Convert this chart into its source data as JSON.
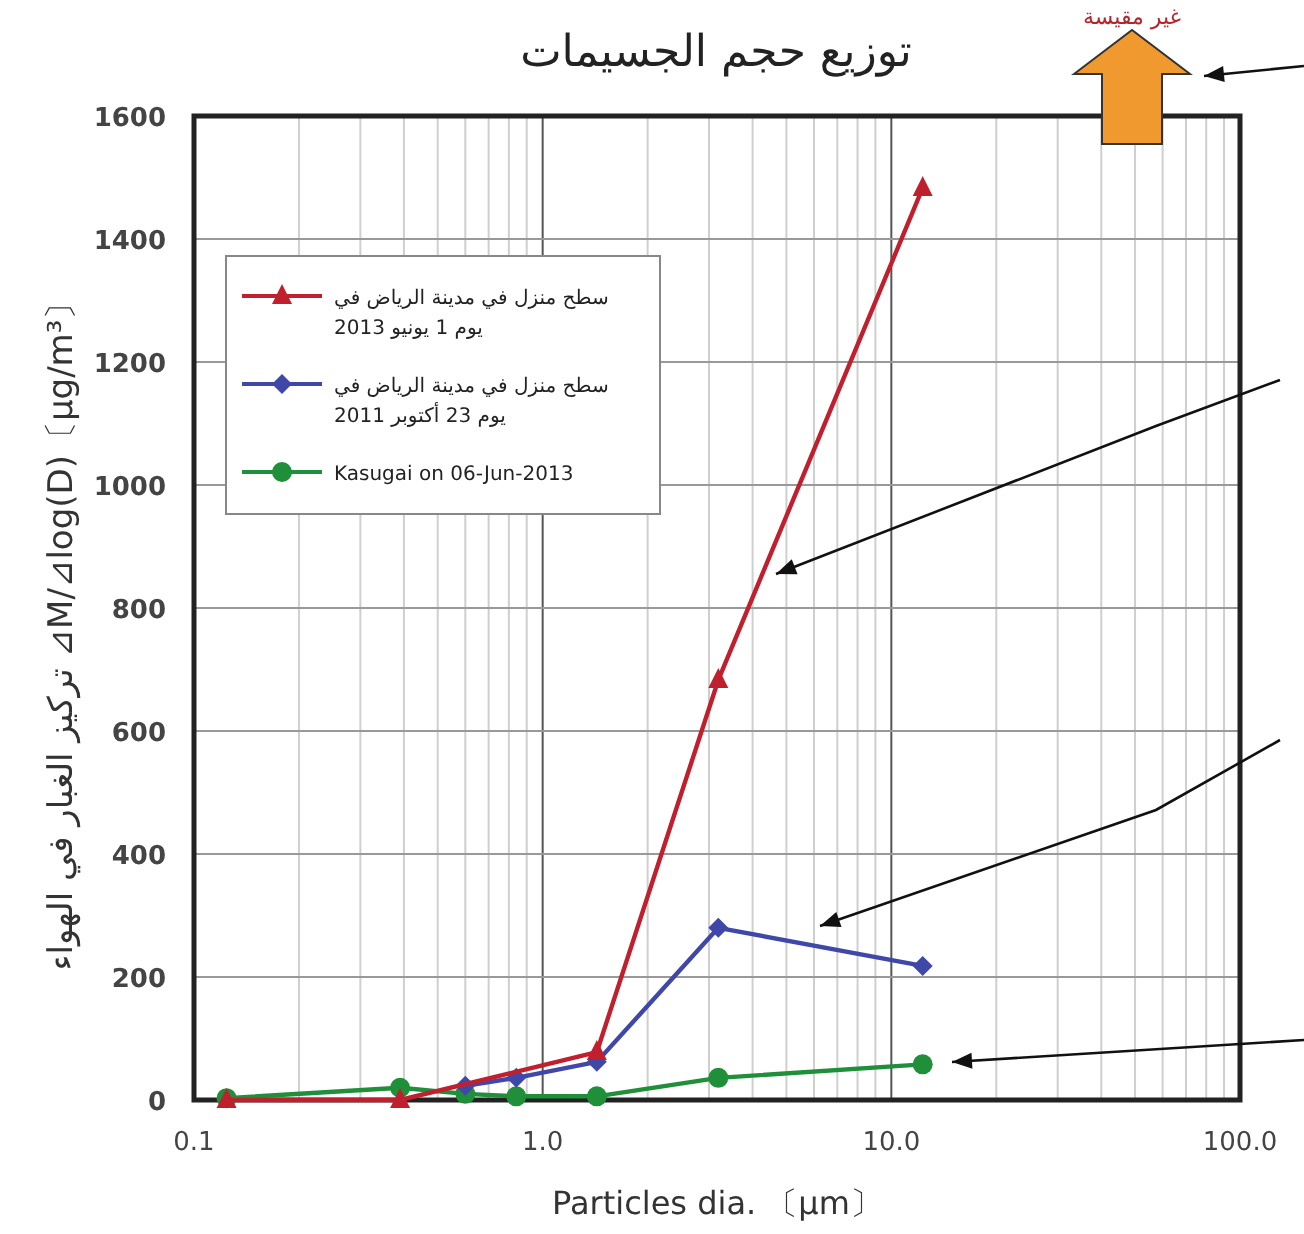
{
  "chart_data": {
    "type": "line",
    "title": "توزيع حجم الجسيمات",
    "xlabel": "Particles dia. 〔μm〕",
    "ylabel": "تركيز الغبار في الهواء  ⊿M/⊿log(D)〔μg/m³〕",
    "annotations": [
      "غير مقيسة"
    ],
    "log": "x",
    "xlim": [
      0.1,
      100
    ],
    "xticks": [
      {
        "value": 0.1,
        "label": "0.1"
      },
      {
        "value": 1,
        "label": "1.0"
      },
      {
        "value": 10,
        "label": "10.0"
      },
      {
        "value": 100,
        "label": "100.0"
      }
    ],
    "ylim": [
      0,
      1600
    ],
    "yticks": [
      0,
      200,
      400,
      600,
      800,
      1000,
      1200,
      1400,
      1600
    ],
    "grid": true,
    "legend": "top left",
    "line_style": "solid",
    "series": [
      {
        "name": "سطح منزل في مدينة الرياض في يوم 1 يونيو 2013",
        "color": "#c0202e",
        "marker": "triangle",
        "x": [
          0.124,
          0.39,
          1.43,
          3.19,
          12.3
        ],
        "values": [
          0,
          0,
          78,
          683,
          1483
        ]
      },
      {
        "name": "سطح منزل في مدينة الرياض في يوم 23 أكتوبر 2011",
        "color": "#3f48a8",
        "marker": "diamond",
        "x": [
          0.6,
          0.84,
          1.43,
          3.19,
          12.3
        ],
        "values": [
          23,
          36,
          62,
          280,
          218
        ]
      },
      {
        "name": "Kasugai on 06-Jun-2013",
        "color": "#1f8f3a",
        "marker": "circle",
        "x": [
          0.124,
          0.39,
          0.6,
          0.84,
          1.43,
          3.19,
          12.3
        ],
        "values": [
          3,
          20,
          10,
          6,
          6,
          36,
          58
        ]
      }
    ]
  }
}
